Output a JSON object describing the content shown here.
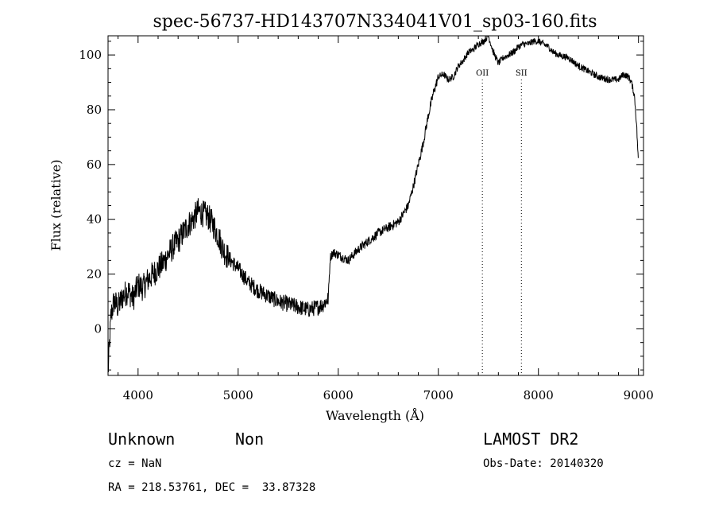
{
  "chart_data": {
    "type": "line",
    "title": "spec-56737-HD143707N334041V01_sp03-160.fits",
    "xlabel": "Wavelength (Å)",
    "ylabel": "Flux (relative)",
    "xlim": [
      3700,
      9050
    ],
    "ylim": [
      -17,
      107
    ],
    "x_ticks": [
      4000,
      5000,
      6000,
      7000,
      8000,
      9000
    ],
    "y_ticks": [
      0,
      20,
      40,
      60,
      80,
      100
    ],
    "grid": false,
    "series": [
      {
        "x": [
          3700,
          3730,
          3760,
          3800,
          3850,
          3900,
          3950,
          4000,
          4050,
          4100,
          4150,
          4200,
          4250,
          4300,
          4350,
          4400,
          4450,
          4500,
          4550,
          4600,
          4650,
          4700,
          4750,
          4800,
          4850,
          4900,
          4950,
          5000,
          5100,
          5200,
          5300,
          5400,
          5500,
          5600,
          5700,
          5800,
          5850,
          5900,
          5920,
          5950,
          6000,
          6050,
          6100,
          6150,
          6200,
          6300,
          6400,
          6500,
          6600,
          6700,
          6750,
          6800,
          6850,
          6900,
          6950,
          7000,
          7050,
          7100,
          7150,
          7200,
          7250,
          7300,
          7350,
          7400,
          7450,
          7500,
          7550,
          7600,
          7650,
          7700,
          7750,
          7800,
          7850,
          7900,
          7950,
          8000,
          8050,
          8100,
          8150,
          8200,
          8300,
          8400,
          8500,
          8600,
          8700,
          8800,
          8850,
          8900,
          8930,
          8960,
          8980,
          9000
        ],
        "y": [
          -16,
          5,
          10,
          8,
          12,
          14,
          11,
          16,
          15,
          18,
          20,
          22,
          24,
          27,
          30,
          32,
          35,
          38,
          40,
          43,
          42,
          41,
          38,
          34,
          29,
          26,
          24,
          22,
          17,
          14,
          12,
          10,
          9,
          8,
          7,
          8,
          9,
          11,
          26,
          28,
          27,
          26,
          25,
          27,
          29,
          32,
          35,
          37,
          39,
          45,
          52,
          60,
          68,
          78,
          86,
          92,
          93,
          91,
          92,
          96,
          98,
          101,
          102,
          104,
          105,
          107,
          101,
          97,
          99,
          100,
          101,
          103,
          104,
          104,
          105,
          105,
          104,
          103,
          101,
          100,
          99,
          96,
          94,
          92,
          91,
          91,
          93,
          92,
          90,
          85,
          75,
          60
        ]
      }
    ],
    "annotations": [
      {
        "text": "OII",
        "x": 7440
      },
      {
        "text": "SII",
        "x": 7830
      }
    ]
  },
  "footer": {
    "object_class": "Unknown",
    "object_subclass": "Non",
    "cz": "cz = NaN",
    "coords": "RA = 218.53761, DEC =  33.87328",
    "survey": "LAMOST DR2",
    "obs_date": "Obs-Date: 20140320"
  }
}
